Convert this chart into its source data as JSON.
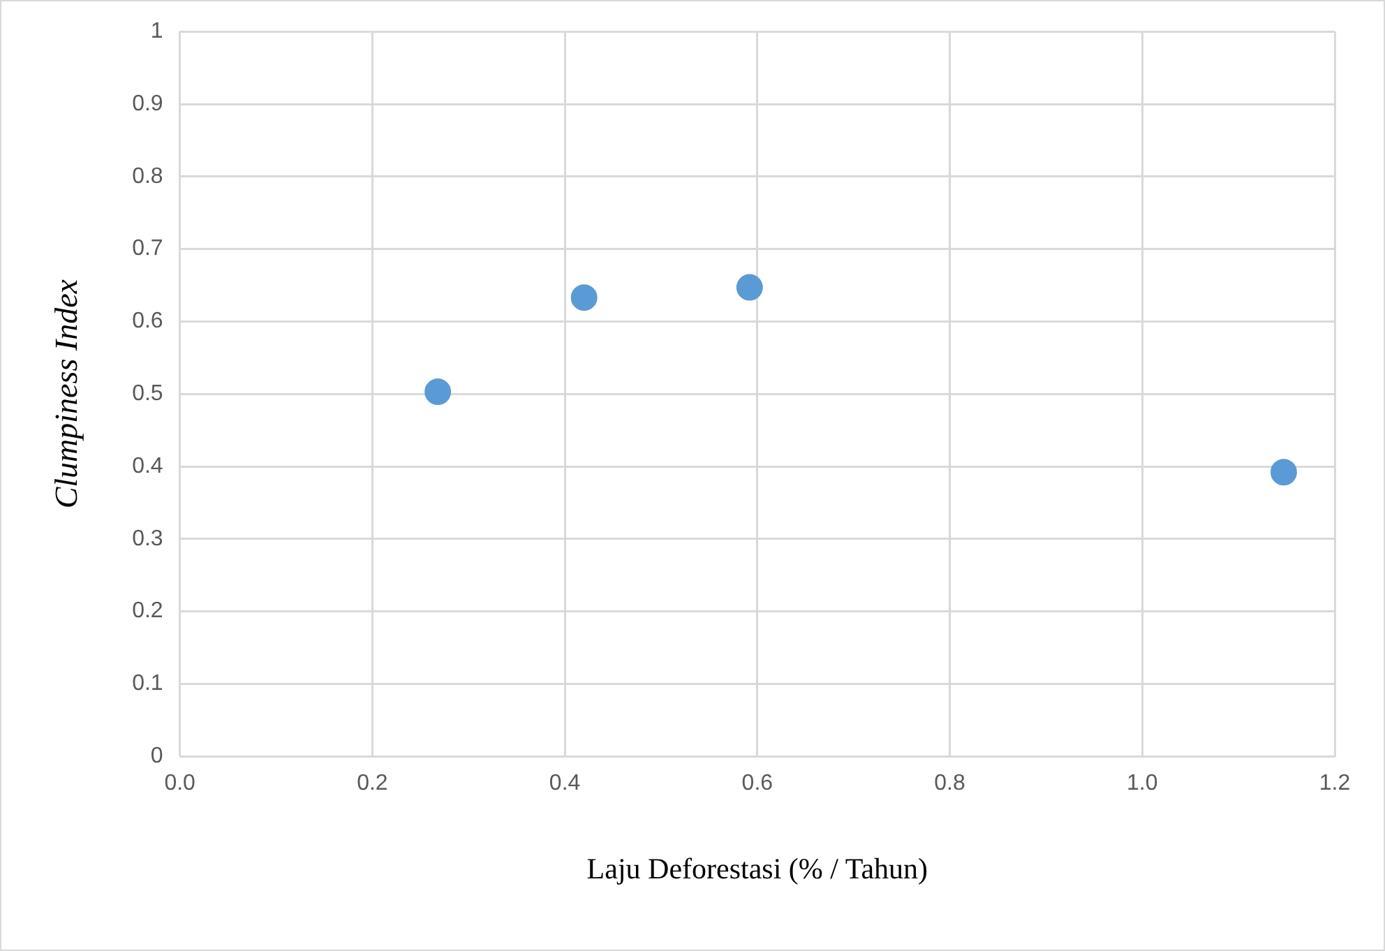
{
  "chart_data": {
    "type": "scatter",
    "xlabel": "Laju Deforestasi (% / Tahun)",
    "ylabel": "Clumpiness Index",
    "x": [
      0.268,
      0.42,
      0.592,
      1.147
    ],
    "series": [
      {
        "color": "#5b9bd5",
        "values": [
          0.503,
          0.633,
          0.647,
          0.392
        ]
      }
    ],
    "xlim": [
      0,
      1.2
    ],
    "xticks": [
      {
        "value": 0,
        "label": "0.0"
      },
      0.2,
      0.4,
      0.6,
      0.8,
      {
        "value": 1,
        "label": "1.0"
      },
      1.2
    ],
    "ylim": [
      0,
      1
    ],
    "yticks": [
      0,
      0.1,
      0.2,
      0.3,
      0.4,
      0.5,
      0.6,
      0.7,
      0.8,
      0.9,
      1
    ],
    "grid": true,
    "legend": false,
    "marker": "circle"
  }
}
